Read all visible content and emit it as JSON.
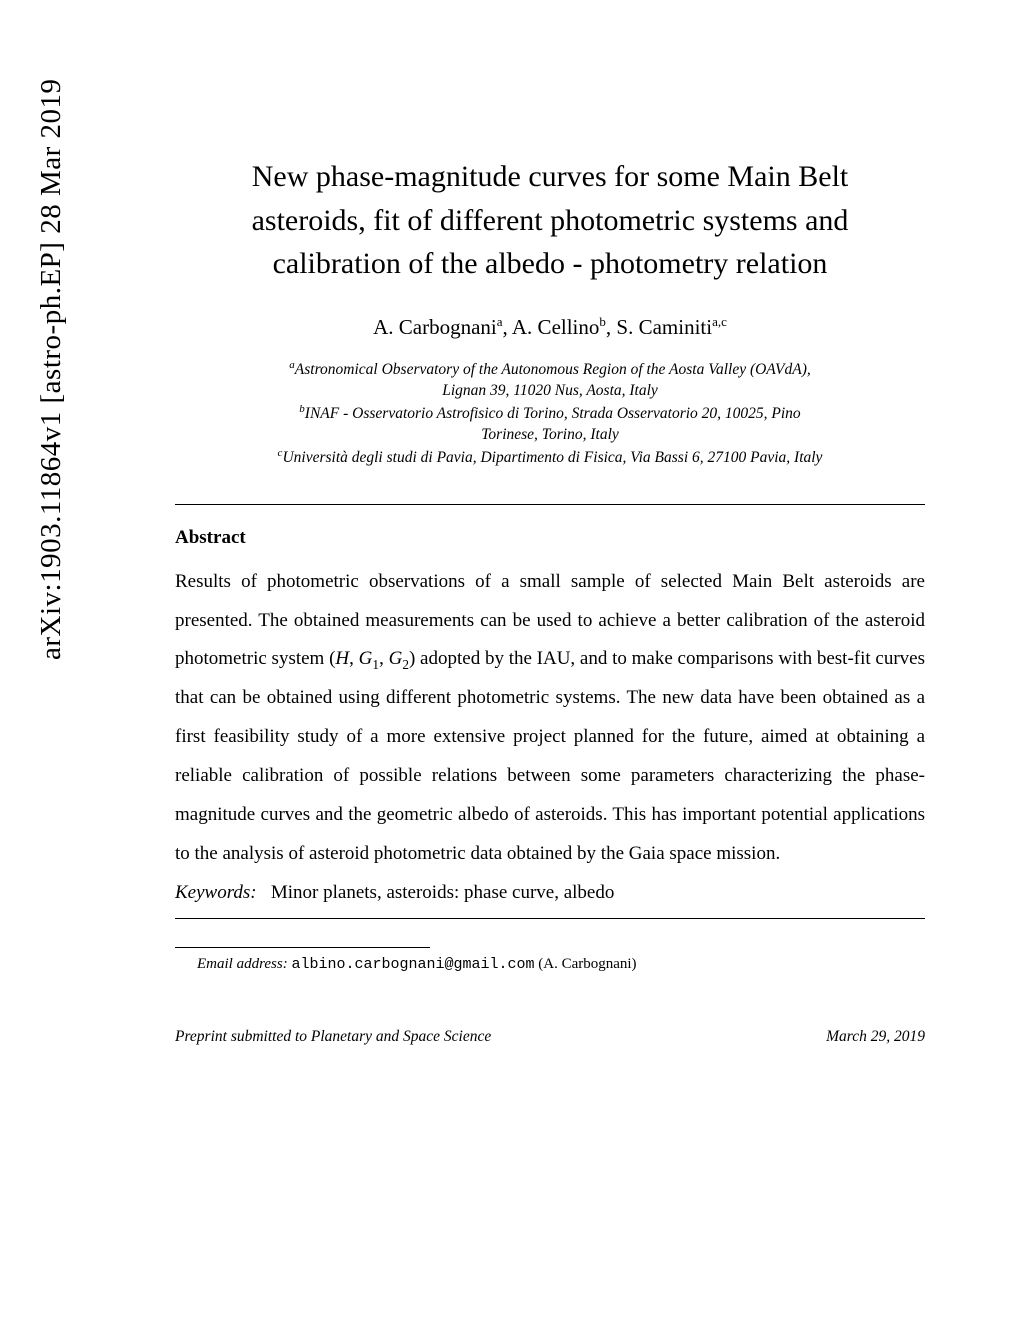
{
  "arxiv": {
    "identifier": "arXiv:1903.11864v1  [astro-ph.EP]  28 Mar 2019"
  },
  "title": {
    "line1": "New phase-magnitude curves for some Main Belt",
    "line2": "asteroids, fit of different photometric systems and",
    "line3": "calibration of the albedo - photometry relation"
  },
  "authors": {
    "a1_name": "A.  Carbognani",
    "a1_sup": "a",
    "sep1": ", ",
    "a2_name": "A.  Cellino",
    "a2_sup": "b",
    "sep2": ", ",
    "a3_name": "S. Caminiti",
    "a3_sup": "a,c"
  },
  "affiliations": {
    "a_sup": "a",
    "a_text1": "Astronomical Observatory of the Autonomous Region of the Aosta Valley (OAVdA),",
    "a_text2": "Lignan 39, 11020 Nus, Aosta, Italy",
    "b_sup": "b",
    "b_text1": "INAF - Osservatorio Astrofisico di Torino, Strada Osservatorio 20, 10025, Pino",
    "b_text2": "Torinese, Torino, Italy",
    "c_sup": "c",
    "c_text": "Università degli studi di Pavia, Dipartimento di Fisica, Via Bassi 6, 27100 Pavia, Italy"
  },
  "abstract": {
    "heading": "Abstract",
    "text_before": "Results of photometric observations of a small sample of selected Main Belt asteroids are presented. The obtained measurements can be used to achieve a better calibration of the asteroid photometric system (",
    "h": "H",
    "comma1": ", ",
    "g1": "G",
    "g1_sub": "1",
    "comma2": ", ",
    "g2": "G",
    "g2_sub": "2",
    "text_after": ") adopted by the IAU, and to make comparisons with best-fit curves that can be obtained using different photometric systems. The new data have been obtained as a first feasibility study of a more extensive project planned for the future, aimed at obtaining a reliable calibration of possible relations between some parameters characterizing the phase-magnitude curves and the geometric albedo of asteroids. This has important potential applications to the analysis of asteroid photometric data obtained by the Gaia space mission."
  },
  "keywords": {
    "label": "Keywords:",
    "spacing": "   ",
    "text": "Minor planets, asteroids: phase curve, albedo"
  },
  "footnote": {
    "label": "Email address: ",
    "email": "albino.carbognani@gmail.com",
    "author": " (A.  Carbognani)"
  },
  "preprint": {
    "left": "Preprint submitted to Planetary and Space Science",
    "right": "March 29, 2019"
  },
  "colors": {
    "text": "#000000",
    "background": "#ffffff"
  }
}
